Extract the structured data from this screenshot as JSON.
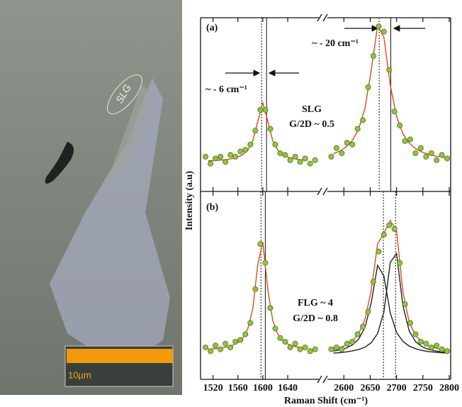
{
  "image": {
    "labels": [
      "SLG",
      "10µm"
    ]
  },
  "chart_data": [
    {
      "type": "scatter",
      "ylabel": "Intensity (a.u)",
      "ylim": [
        0,
        1
      ],
      "annotations": [
        "(a)",
        "~ - 6 cm⁻¹",
        "~ - 20 cm⁻¹",
        "SLG",
        "G/2D ~ 0.5"
      ],
      "vlines": [
        {
          "x": 1598,
          "style": "dotted"
        },
        {
          "x": 1606,
          "style": "solid"
        },
        {
          "x": 2667,
          "style": "dotted"
        },
        {
          "x": 2689,
          "style": "solid"
        }
      ],
      "series": [
        {
          "style": "markers",
          "color": "#8cc63e",
          "x": [
            1508,
            1516,
            1524,
            1532,
            1540,
            1548,
            1556,
            1564,
            1572,
            1580,
            1588,
            1596,
            1604,
            1612,
            1620,
            1628,
            1636,
            1644,
            1652,
            1660,
            1668,
            1676,
            1684
          ],
          "values": [
            0.2,
            0.16,
            0.19,
            0.2,
            0.17,
            0.21,
            0.2,
            0.23,
            0.24,
            0.27,
            0.35,
            0.47,
            0.47,
            0.36,
            0.27,
            0.22,
            0.21,
            0.18,
            0.2,
            0.17,
            0.19,
            0.16,
            0.18
          ]
        },
        {
          "style": "markers",
          "color": "#8cc63e",
          "x": [
            2576,
            2586,
            2596,
            2606,
            2616,
            2626,
            2636,
            2646,
            2656,
            2666,
            2676,
            2686,
            2696,
            2706,
            2716,
            2726,
            2736,
            2746,
            2756,
            2766,
            2776,
            2786,
            2796
          ],
          "values": [
            0.2,
            0.25,
            0.22,
            0.28,
            0.27,
            0.36,
            0.41,
            0.6,
            0.78,
            0.95,
            0.92,
            0.7,
            0.46,
            0.38,
            0.29,
            0.3,
            0.22,
            0.25,
            0.2,
            0.22,
            0.18,
            0.21,
            0.19
          ]
        },
        {
          "style": "line",
          "color": "#e04a1c",
          "x": [
            1512,
            1520,
            1528,
            1536,
            1544,
            1552,
            1560,
            1568,
            1576,
            1584,
            1592,
            1600,
            1608,
            1616,
            1624,
            1632,
            1640,
            1648,
            1656,
            1664,
            1672
          ],
          "values": [
            0.176,
            0.178,
            0.179,
            0.182,
            0.185,
            0.19,
            0.198,
            0.212,
            0.238,
            0.292,
            0.405,
            0.51,
            0.405,
            0.292,
            0.238,
            0.212,
            0.198,
            0.19,
            0.185,
            0.182,
            0.179
          ]
        },
        {
          "style": "line",
          "color": "#e04a1c",
          "x": [
            2580,
            2592,
            2604,
            2616,
            2628,
            2640,
            2652,
            2664,
            2676,
            2688,
            2700,
            2712,
            2724,
            2736,
            2748,
            2760,
            2772,
            2784,
            2796
          ],
          "values": [
            0.218,
            0.232,
            0.256,
            0.293,
            0.358,
            0.479,
            0.699,
            0.955,
            0.887,
            0.613,
            0.431,
            0.332,
            0.278,
            0.247,
            0.227,
            0.214,
            0.205,
            0.198,
            0.193
          ]
        }
      ]
    },
    {
      "type": "scatter",
      "xlabel": "Raman Shift (cm⁻¹)",
      "ylim": [
        0,
        1
      ],
      "x_segments": [
        {
          "xlim": [
            1500,
            1690
          ],
          "xticks": [
            1520,
            1560,
            1600,
            1640
          ]
        },
        {
          "xlim": [
            2570,
            2800
          ],
          "xticks": [
            2600,
            2650,
            2700,
            2750,
            2800
          ]
        }
      ],
      "annotations": [
        "(b)",
        "FLG ~ 4",
        "G/2D ~ 0.8"
      ],
      "vlines": [
        {
          "x": 1597,
          "style": "dotted"
        },
        {
          "x": 1604,
          "style": "solid"
        },
        {
          "x": 2675,
          "style": "dotted"
        },
        {
          "x": 2698,
          "style": "dotted"
        }
      ],
      "series": [
        {
          "style": "markers",
          "color": "#8cc63e",
          "x": [
            1508,
            1516,
            1524,
            1532,
            1540,
            1548,
            1556,
            1564,
            1572,
            1580,
            1588,
            1596,
            1604,
            1612,
            1620,
            1628,
            1636,
            1644,
            1652,
            1660,
            1668,
            1676,
            1684
          ],
          "values": [
            0.17,
            0.15,
            0.18,
            0.16,
            0.19,
            0.17,
            0.2,
            0.21,
            0.24,
            0.3,
            0.48,
            0.72,
            0.62,
            0.38,
            0.27,
            0.22,
            0.2,
            0.17,
            0.19,
            0.16,
            0.17,
            0.15,
            0.16
          ]
        },
        {
          "style": "markers",
          "color": "#8cc63e",
          "x": [
            2576,
            2586,
            2596,
            2606,
            2616,
            2626,
            2636,
            2646,
            2656,
            2666,
            2676,
            2686,
            2696,
            2706,
            2716,
            2726,
            2736,
            2746,
            2756,
            2766,
            2776,
            2786,
            2796
          ],
          "values": [
            0.16,
            0.17,
            0.16,
            0.19,
            0.2,
            0.24,
            0.28,
            0.36,
            0.52,
            0.68,
            0.77,
            0.82,
            0.8,
            0.62,
            0.4,
            0.3,
            0.24,
            0.2,
            0.19,
            0.17,
            0.18,
            0.16,
            0.15
          ]
        },
        {
          "style": "line",
          "color": "#e04a1c",
          "x": [
            1512,
            1520,
            1528,
            1536,
            1544,
            1552,
            1560,
            1568,
            1576,
            1584,
            1592,
            1600,
            1608,
            1616,
            1624,
            1632,
            1640,
            1648,
            1656,
            1664,
            1672
          ],
          "values": [
            0.16,
            0.162,
            0.164,
            0.168,
            0.174,
            0.182,
            0.196,
            0.221,
            0.27,
            0.379,
            0.612,
            0.731,
            0.478,
            0.313,
            0.241,
            0.207,
            0.188,
            0.178,
            0.171,
            0.166,
            0.163
          ]
        },
        {
          "style": "line",
          "color": "#222222",
          "x": [
            2580,
            2592,
            2604,
            2616,
            2628,
            2640,
            2652,
            2664,
            2676,
            2688,
            2700,
            2712,
            2724,
            2736,
            2748,
            2760,
            2772,
            2784,
            2796
          ],
          "values": [
            0.15,
            0.157,
            0.166,
            0.183,
            0.214,
            0.276,
            0.409,
            0.607,
            0.549,
            0.354,
            0.25,
            0.202,
            0.177,
            0.163,
            0.154,
            0.148,
            0.145,
            0.142,
            0.14
          ]
        },
        {
          "style": "line",
          "color": "#222222",
          "x": [
            2580,
            2592,
            2604,
            2616,
            2628,
            2640,
            2652,
            2664,
            2676,
            2688,
            2700,
            2712,
            2724,
            2736,
            2748,
            2760,
            2772,
            2784,
            2796
          ],
          "values": [
            0.14,
            0.142,
            0.146,
            0.151,
            0.159,
            0.171,
            0.195,
            0.244,
            0.359,
            0.622,
            0.67,
            0.393,
            0.257,
            0.201,
            0.174,
            0.16,
            0.152,
            0.147,
            0.143
          ]
        },
        {
          "style": "line",
          "color": "#e04a1c",
          "x": [
            2580,
            2592,
            2604,
            2616,
            2628,
            2640,
            2652,
            2664,
            2676,
            2688,
            2700,
            2712,
            2724,
            2736,
            2748,
            2760,
            2772,
            2784,
            2796
          ],
          "values": [
            0.16,
            0.169,
            0.182,
            0.204,
            0.243,
            0.317,
            0.474,
            0.721,
            0.778,
            0.846,
            0.79,
            0.465,
            0.304,
            0.234,
            0.198,
            0.178,
            0.167,
            0.159,
            0.153
          ]
        }
      ]
    }
  ]
}
